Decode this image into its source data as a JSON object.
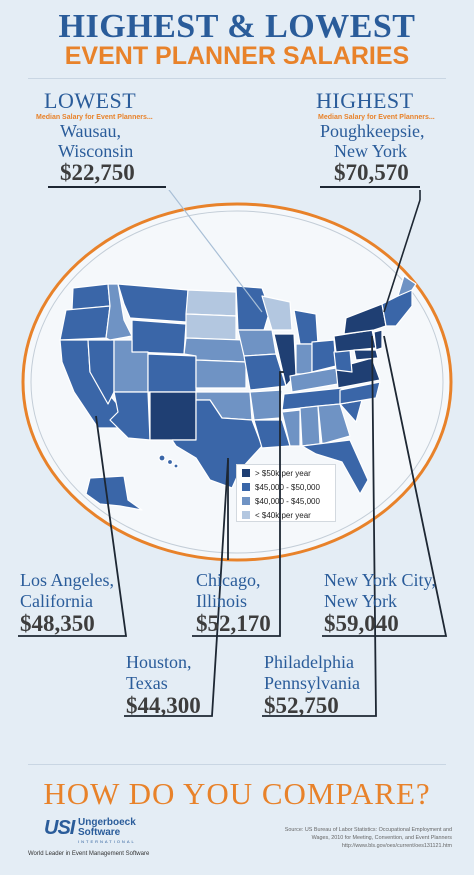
{
  "title": {
    "line1": "HIGHEST & LOWEST",
    "line2": "EVENT PLANNER SALARIES"
  },
  "lowest": {
    "heading": "LOWEST",
    "subheading": "Median Salary for Event Planners...",
    "city": "Wausau,",
    "state": "Wisconsin",
    "amount": "$22,750"
  },
  "highest": {
    "heading": "HIGHEST",
    "subheading": "Median Salary for Event Planners...",
    "city": "Poughkeepsie,",
    "state": "New York",
    "amount": "$70,570"
  },
  "cities": {
    "los_angeles": {
      "line1": "Los Angeles,",
      "line2": "California",
      "amount": "$48,350"
    },
    "chicago": {
      "line1": "Chicago,",
      "line2": "Illinois",
      "amount": "$52,170"
    },
    "new_york_city": {
      "line1": "New York City,",
      "line2": "New York",
      "amount": "$59,040"
    },
    "houston": {
      "line1": "Houston,",
      "line2": "Texas",
      "amount": "$44,300"
    },
    "philadelphia": {
      "line1": "Philadelphia",
      "line2": "Pennsylvania",
      "amount": "$52,750"
    }
  },
  "legend": {
    "items": [
      {
        "label": "> $50k per year",
        "color": "#1f3f73"
      },
      {
        "label": "$45,000 - $50,000",
        "color": "#3a66a8"
      },
      {
        "label": "$40,000 - $45,000",
        "color": "#6f93c4"
      },
      {
        "label": "< $40k per year",
        "color": "#b3c7e0"
      }
    ]
  },
  "colors": {
    "brand_blue": "#2a5c9a",
    "accent_orange": "#e8822a",
    "amount_gray": "#3d3d3d",
    "background": "#e4edf5"
  },
  "footer": {
    "cta": "HOW DO YOU COMPARE?",
    "logo_mark": "USI",
    "logo_name_1": "Ungerboeck",
    "logo_name_2": "Software",
    "logo_intl": "INTERNATIONAL",
    "tagline": "World Leader in Event Management Software",
    "source_1": "Source: US Bureau of Labor Statistics: Occupational Employment and",
    "source_2": "Wages, 2010 for Meeting, Convention, and Event Planners",
    "source_3": "http://www.bls.gov/oes/current/oes131121.htm"
  }
}
